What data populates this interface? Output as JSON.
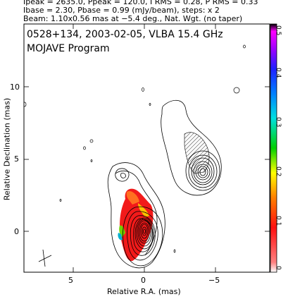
{
  "header": {
    "line1": "Ipeak = 2635.0, Ppeak = 120.0, I RMS = 0.28, P RMS = 0.33",
    "line2": "Ibase = 2.30, Pbase = 0.99 (mJy/beam), steps: x 2",
    "line3": "Beam: 1.10x0.56 mas at −5.4 deg., Nat. Wgt. (no taper)"
  },
  "plot": {
    "title": "0528+134, 2003-02-05, VLBA 15.4 GHz",
    "subtitle": "MOJAVE Program",
    "xlabel": "Relative R.A. (mas)",
    "ylabel": "Relative Declination (mas)",
    "xticks": [
      "5",
      "0",
      "−5"
    ],
    "yticks": [
      "10",
      "5",
      "0"
    ]
  },
  "colorbar": {
    "ticks": [
      "0.5",
      "0.4",
      "0.3",
      "0.2",
      "0.1",
      "0"
    ]
  }
}
